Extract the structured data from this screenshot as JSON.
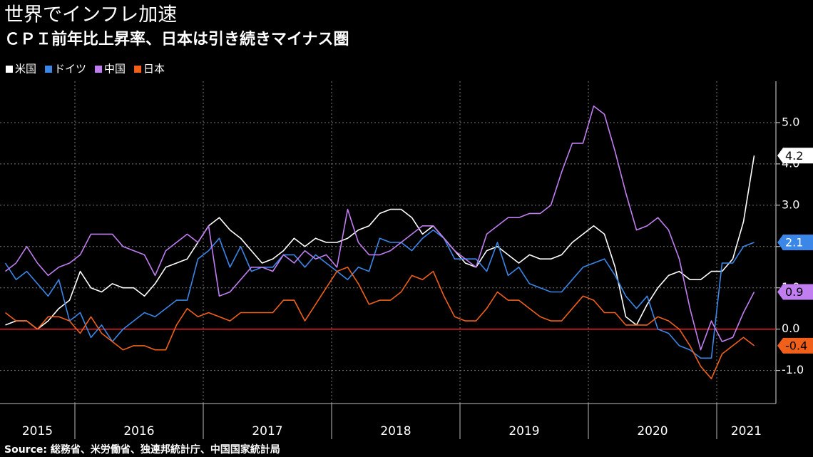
{
  "chart_data": {
    "type": "line",
    "title": "世界でインフレ加速",
    "subtitle": "ＣＰＩ前年比上昇率、日本は引き続きマイナス圏",
    "source": "Source: 総務省、米労働省、独連邦統計庁、中国国家統計局",
    "x": [
      2015.4583,
      2015.5417,
      2015.625,
      2015.7083,
      2015.7917,
      2015.875,
      2015.9583,
      2016.0417,
      2016.125,
      2016.2083,
      2016.2917,
      2016.375,
      2016.4583,
      2016.5417,
      2016.625,
      2016.7083,
      2016.7917,
      2016.875,
      2016.9583,
      2017.0417,
      2017.125,
      2017.2083,
      2017.2917,
      2017.375,
      2017.4583,
      2017.5417,
      2017.625,
      2017.7083,
      2017.7917,
      2017.875,
      2017.9583,
      2018.0417,
      2018.125,
      2018.2083,
      2018.2917,
      2018.375,
      2018.4583,
      2018.5417,
      2018.625,
      2018.7083,
      2018.7917,
      2018.875,
      2018.9583,
      2019.0417,
      2019.125,
      2019.2083,
      2019.2917,
      2019.375,
      2019.4583,
      2019.5417,
      2019.625,
      2019.7083,
      2019.7917,
      2019.875,
      2019.9583,
      2020.0417,
      2020.125,
      2020.2083,
      2020.2917,
      2020.375,
      2020.4583,
      2020.5417,
      2020.625,
      2020.7083,
      2020.7917,
      2020.875,
      2020.9583,
      2021.0417,
      2021.125,
      2021.2083,
      2021.2917
    ],
    "series": [
      {
        "name": "米国",
        "color": "#ffffff",
        "label_text_color": "#000000",
        "values": [
          0.1,
          0.2,
          0.2,
          0.0,
          0.2,
          0.5,
          0.7,
          1.4,
          1.0,
          0.9,
          1.1,
          1.0,
          1.0,
          0.8,
          1.1,
          1.5,
          1.6,
          1.7,
          2.1,
          2.5,
          2.7,
          2.4,
          2.2,
          1.9,
          1.6,
          1.7,
          1.9,
          2.2,
          2.0,
          2.2,
          2.1,
          2.1,
          2.2,
          2.4,
          2.5,
          2.8,
          2.9,
          2.9,
          2.7,
          2.3,
          2.5,
          2.2,
          1.9,
          1.6,
          1.5,
          1.9,
          2.0,
          1.8,
          1.6,
          1.8,
          1.7,
          1.7,
          1.8,
          2.1,
          2.3,
          2.5,
          2.3,
          1.5,
          0.3,
          0.1,
          0.6,
          1.0,
          1.3,
          1.4,
          1.2,
          1.2,
          1.4,
          1.4,
          1.7,
          2.6,
          4.2
        ]
      },
      {
        "name": "ドイツ",
        "color": "#3a87e8",
        "label_text_color": "#ffffff",
        "values": [
          1.6,
          1.2,
          1.4,
          1.1,
          0.8,
          1.2,
          0.2,
          0.4,
          -0.2,
          0.1,
          -0.3,
          0.0,
          0.2,
          0.4,
          0.3,
          0.5,
          0.7,
          0.7,
          1.7,
          1.9,
          2.2,
          1.5,
          2.0,
          1.4,
          1.5,
          1.5,
          1.8,
          1.8,
          1.5,
          1.8,
          1.6,
          1.4,
          1.2,
          1.5,
          1.4,
          2.2,
          2.1,
          2.1,
          1.9,
          2.2,
          2.4,
          2.2,
          1.7,
          1.7,
          1.7,
          1.4,
          2.1,
          1.3,
          1.5,
          1.1,
          1.0,
          0.9,
          0.9,
          1.2,
          1.5,
          1.6,
          1.7,
          1.3,
          0.8,
          0.5,
          0.8,
          0.0,
          -0.1,
          -0.4,
          -0.5,
          -0.7,
          -0.7,
          1.6,
          1.6,
          2.0,
          2.1
        ]
      },
      {
        "name": "中国",
        "color": "#c07ef0",
        "label_text_color": "#000000",
        "values": [
          1.4,
          1.6,
          2.0,
          1.6,
          1.3,
          1.5,
          1.6,
          1.8,
          2.3,
          2.3,
          2.3,
          2.0,
          1.9,
          1.8,
          1.3,
          1.9,
          2.1,
          2.3,
          2.1,
          2.5,
          0.8,
          0.9,
          1.2,
          1.5,
          1.5,
          1.4,
          1.8,
          1.6,
          1.9,
          1.7,
          1.8,
          1.5,
          2.9,
          2.1,
          1.8,
          1.8,
          1.9,
          2.1,
          2.3,
          2.5,
          2.5,
          2.2,
          1.9,
          1.7,
          1.5,
          2.3,
          2.5,
          2.7,
          2.7,
          2.8,
          2.8,
          3.0,
          3.8,
          4.5,
          4.5,
          5.4,
          5.2,
          4.3,
          3.3,
          2.4,
          2.5,
          2.7,
          2.4,
          1.7,
          0.5,
          -0.5,
          0.2,
          -0.3,
          -0.2,
          0.4,
          0.9
        ]
      },
      {
        "name": "日本",
        "color": "#f0601a",
        "label_text_color": "#000000",
        "values": [
          0.4,
          0.2,
          0.2,
          0.0,
          0.3,
          0.3,
          0.2,
          -0.1,
          0.3,
          -0.1,
          -0.3,
          -0.5,
          -0.4,
          -0.4,
          -0.5,
          -0.5,
          0.1,
          0.5,
          0.3,
          0.4,
          0.3,
          0.2,
          0.4,
          0.4,
          0.4,
          0.4,
          0.7,
          0.7,
          0.2,
          0.6,
          1.0,
          1.4,
          1.5,
          1.1,
          0.6,
          0.7,
          0.7,
          0.9,
          1.3,
          1.2,
          1.4,
          0.8,
          0.3,
          0.2,
          0.2,
          0.5,
          0.9,
          0.7,
          0.7,
          0.5,
          0.3,
          0.2,
          0.2,
          0.5,
          0.8,
          0.7,
          0.4,
          0.4,
          0.1,
          0.1,
          0.1,
          0.3,
          0.2,
          0.0,
          -0.4,
          -0.9,
          -1.2,
          -0.6,
          -0.4,
          -0.2,
          -0.4
        ]
      }
    ],
    "xlim": [
      2015.4167,
      2021.4611
    ],
    "xticks": [
      2015,
      2016,
      2017,
      2018,
      2019,
      2020,
      2021
    ],
    "ylim": [
      -1.8,
      6.0
    ],
    "yticks": [
      {
        "value": -1,
        "label": "-1.0"
      },
      {
        "value": 0,
        "label": "0.0"
      },
      {
        "value": 1,
        "label": "1.0"
      },
      {
        "value": 2,
        "label": "2.0"
      },
      {
        "value": 3,
        "label": "3.0"
      },
      {
        "value": 4,
        "label": "4.0"
      },
      {
        "value": 5,
        "label": "5.0"
      }
    ],
    "grid": true,
    "zero_line_color": "#e0202a",
    "legend_position": "top-left"
  }
}
